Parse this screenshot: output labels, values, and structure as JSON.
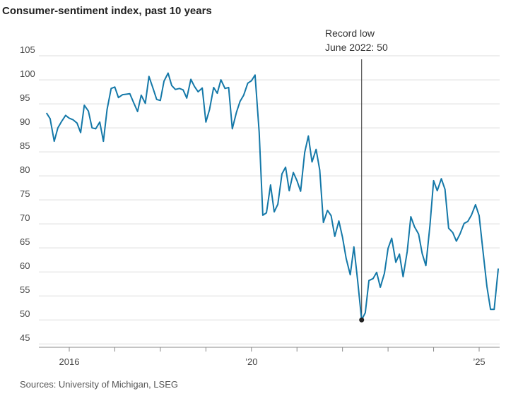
{
  "chart_data": {
    "type": "line",
    "title": "Consumer-sentiment index, past 10 years",
    "source": "Sources: University of Michigan, LSEG",
    "annotation": [
      "Record low",
      "June 2022: 50"
    ],
    "x": [
      2015.5,
      2015.58,
      2015.67,
      2015.75,
      2015.83,
      2015.92,
      2016,
      2016.08,
      2016.17,
      2016.25,
      2016.33,
      2016.42,
      2016.5,
      2016.58,
      2016.67,
      2016.75,
      2016.83,
      2016.92,
      2017,
      2017.08,
      2017.17,
      2017.25,
      2017.33,
      2017.42,
      2017.5,
      2017.58,
      2017.67,
      2017.75,
      2017.83,
      2017.92,
      2018,
      2018.08,
      2018.17,
      2018.25,
      2018.33,
      2018.42,
      2018.5,
      2018.58,
      2018.67,
      2018.75,
      2018.83,
      2018.92,
      2019,
      2019.08,
      2019.17,
      2019.25,
      2019.33,
      2019.42,
      2019.5,
      2019.58,
      2019.67,
      2019.75,
      2019.83,
      2019.92,
      2020,
      2020.08,
      2020.17,
      2020.25,
      2020.33,
      2020.42,
      2020.5,
      2020.58,
      2020.67,
      2020.75,
      2020.83,
      2020.92,
      2021,
      2021.08,
      2021.17,
      2021.25,
      2021.33,
      2021.42,
      2021.5,
      2021.58,
      2021.67,
      2021.75,
      2021.83,
      2021.92,
      2022,
      2022.08,
      2022.17,
      2022.25,
      2022.33,
      2022.42,
      2022.5,
      2022.58,
      2022.67,
      2022.75,
      2022.83,
      2022.92,
      2023,
      2023.08,
      2023.17,
      2023.25,
      2023.33,
      2023.42,
      2023.5,
      2023.58,
      2023.67,
      2023.75,
      2023.83,
      2023.92,
      2024,
      2024.08,
      2024.17,
      2024.25,
      2024.33,
      2024.42,
      2024.5,
      2024.58,
      2024.67,
      2024.75,
      2024.83,
      2024.92,
      2025,
      2025.08,
      2025.17,
      2025.25,
      2025.33,
      2025.42
    ],
    "series": [
      {
        "name": "Consumer-sentiment index",
        "color": "#1478a8",
        "values": [
          93.1,
          91.9,
          87.2,
          90.0,
          91.3,
          92.6,
          92.0,
          91.7,
          91.0,
          89.0,
          94.7,
          93.5,
          90.0,
          89.8,
          91.2,
          87.2,
          93.8,
          98.2,
          98.5,
          96.3,
          96.9,
          97.0,
          97.1,
          95.1,
          93.4,
          96.8,
          95.1,
          100.7,
          98.5,
          95.9,
          95.7,
          99.7,
          101.4,
          98.8,
          98.0,
          98.2,
          97.9,
          96.2,
          100.1,
          98.6,
          97.5,
          98.3,
          91.2,
          93.8,
          98.4,
          97.2,
          100.0,
          98.2,
          98.4,
          89.8,
          93.2,
          95.5,
          96.8,
          99.3,
          99.8,
          101.0,
          89.1,
          71.8,
          72.3,
          78.1,
          72.5,
          74.1,
          80.4,
          81.8,
          76.9,
          80.7,
          79.0,
          76.8,
          84.9,
          88.3,
          82.9,
          85.5,
          81.2,
          70.3,
          72.8,
          71.7,
          67.4,
          70.6,
          67.2,
          62.8,
          59.4,
          65.2,
          58.4,
          50.0,
          51.5,
          58.2,
          58.6,
          59.9,
          56.8,
          59.7,
          64.9,
          67.0,
          62.0,
          63.7,
          59.0,
          64.2,
          71.5,
          69.4,
          67.9,
          63.8,
          61.3,
          69.7,
          79.0,
          76.9,
          79.4,
          77.2,
          69.1,
          68.2,
          66.4,
          67.9,
          70.1,
          70.5,
          71.8,
          74.0,
          71.7,
          64.7,
          57.0,
          52.2,
          52.2,
          60.7
        ]
      }
    ],
    "xlim": [
      2015.1,
      2025.45
    ],
    "xticks": [
      2016,
      {
        "value": 2017,
        "label": null
      },
      {
        "value": 2018,
        "label": null
      },
      {
        "value": 2019,
        "label": null
      },
      {
        "value": 2020,
        "label": "’20"
      },
      {
        "value": 2021,
        "label": null
      },
      {
        "value": 2022,
        "label": null
      },
      {
        "value": 2023,
        "label": null
      },
      {
        "value": 2024,
        "label": null
      },
      {
        "value": 2025,
        "label": "’25"
      }
    ],
    "ylim": [
      44.3,
      107.8
    ],
    "yticks": [
      45,
      50,
      55,
      60,
      65,
      70,
      75,
      80,
      85,
      90,
      95,
      100,
      105
    ],
    "grid": true
  }
}
